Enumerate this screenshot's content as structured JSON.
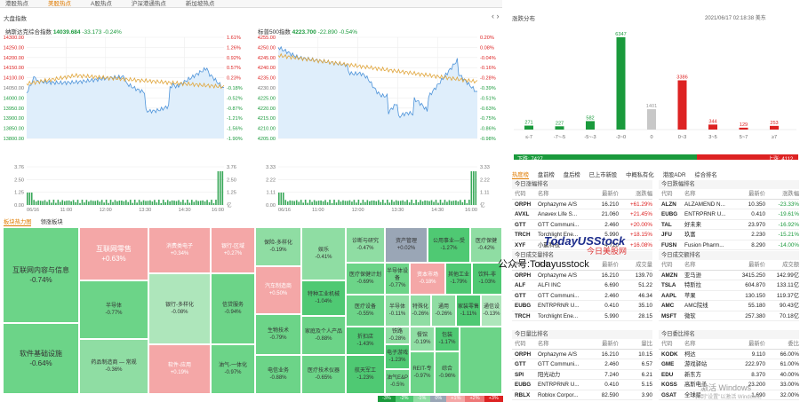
{
  "top_tabs": [
    "港股热点",
    "美股热点",
    "A股热点",
    "沪深港通热点",
    "新加坡热点"
  ],
  "market_index": {
    "title": "大盘指数",
    "nasdaq": {
      "label": "纳斯达克综合指数",
      "value": "14039.684",
      "change": "-33.173",
      "pct": "-0.24%",
      "yticks": [
        "14300.00",
        "14250.00",
        "14200.00",
        "14150.00",
        "14100.00",
        "14050.00",
        "14000.00",
        "13950.00",
        "13900.00",
        "13850.00",
        "13800.00"
      ],
      "pticks": [
        "1.61%",
        "1.26%",
        "0.92%",
        "0.57%",
        "0.23%",
        "-0.18%",
        "-0.52%",
        "-0.87%",
        "-1.21%",
        "-1.56%",
        "-1.90%"
      ],
      "vticks": [
        "3.76",
        "2.50",
        "1.25",
        "0.00"
      ],
      "vticks_r": [
        "3.76",
        "2.50",
        "1.25",
        "亿"
      ],
      "xticks": [
        "06/16",
        "11:00",
        "12:00",
        "13:30",
        "14:30",
        "16:00"
      ]
    },
    "sp500": {
      "label": "标普500指数",
      "value": "4223.700",
      "change": "-22.890",
      "pct": "-0.54%",
      "yticks": [
        "4255.00",
        "4250.00",
        "4245.00",
        "4240.00",
        "4235.00",
        "4230.00",
        "4225.00",
        "4220.00",
        "4215.00",
        "4210.00",
        "4205.00"
      ],
      "pticks": [
        "0.20%",
        "0.08%",
        "-0.04%",
        "-0.16%",
        "-0.28%",
        "-0.39%",
        "-0.51%",
        "-0.63%",
        "-0.75%",
        "-0.86%",
        "-0.98%"
      ],
      "vticks": [
        "3.33",
        "2.22",
        "1.11",
        "0.00"
      ],
      "vticks_r": [
        "3.33",
        "2.22",
        "1.11",
        "亿"
      ],
      "xticks": [
        "06/16",
        "11:00",
        "12:00",
        "13:30",
        "14:30",
        "16:00"
      ]
    }
  },
  "distribution": {
    "title": "涨跌分布",
    "timestamp": "2021/06/17 02:18:38 美东",
    "down_label": "下跌: 7427",
    "up_label": "上涨: 4112",
    "bars": [
      {
        "label": "≤-7",
        "value": 271,
        "color": "#1a9a3c"
      },
      {
        "label": "-7~-5",
        "value": 227,
        "color": "#1a9a3c"
      },
      {
        "label": "-5~-3",
        "value": 582,
        "color": "#1a9a3c"
      },
      {
        "label": "-3~0",
        "value": 6347,
        "color": "#1a9a3c"
      },
      {
        "label": "0",
        "value": 1401,
        "color": "#c8c8c8"
      },
      {
        "label": "0~3",
        "value": 3386,
        "color": "#d22"
      },
      {
        "label": "3~5",
        "value": 344,
        "color": "#d22"
      },
      {
        "label": "5~7",
        "value": 129,
        "color": "#d22"
      },
      {
        "label": "≥7",
        "value": 253,
        "color": "#d22"
      }
    ]
  },
  "heatmap": {
    "tabs": [
      "板块热力图",
      "领涨板块"
    ]
  },
  "right_tabs": [
    "热度榜",
    "盘前榜",
    "盘后榜",
    "已上市新股",
    "中概私有化",
    "港股ADR",
    "综合排名"
  ],
  "watermark": {
    "brand": "TodayUSStock",
    "cn": "今日美股网",
    "wechat": "公众号:Todayusstock",
    "win1": "激活 Windows",
    "win2": "转到\"设置\"以激活 Windows。"
  },
  "tables": {
    "gain": {
      "title": "今日涨幅排名",
      "headers": [
        "代码",
        "名称",
        "最新价",
        "涨跌幅"
      ],
      "rows": [
        [
          "ORPH",
          "Orphazyme A/S",
          "16.210",
          "+61.29%"
        ],
        [
          "AVXL",
          "Anavex Life S...",
          "21.060",
          "+21.45%"
        ],
        [
          "GTT",
          "GTT Communi...",
          "2.460",
          "+20.00%"
        ],
        [
          "TRCH",
          "Torchlight Ene...",
          "5.990",
          "+18.15%"
        ],
        [
          "XYF",
          "小赢科技",
          "4.720",
          "+16.08%"
        ]
      ]
    },
    "loss": {
      "title": "今日跌幅排名",
      "headers": [
        "代码",
        "名称",
        "最新价",
        "涨跌幅"
      ],
      "rows": [
        [
          "ALZN",
          "ALZAMEND N...",
          "10.350",
          "-23.33%"
        ],
        [
          "EUBG",
          "ENTRPRNR U...",
          "0.410",
          "-19.61%"
        ],
        [
          "TAL",
          "好未来",
          "23.970",
          "-16.92%"
        ],
        [
          "JFU",
          "玖富",
          "2.230",
          "-15.21%"
        ],
        [
          "FUSN",
          "Fusion Pharm...",
          "8.290",
          "-14.00%"
        ]
      ]
    },
    "vol": {
      "title": "今日成交量排名",
      "headers": [
        "代码",
        "名称",
        "最新价",
        "成交量"
      ],
      "rows": [
        [
          "ORPH",
          "Orphazyme A/S",
          "16.210",
          "139.70"
        ],
        [
          "ALF",
          "ALFI INC",
          "6.690",
          "51.22"
        ],
        [
          "GTT",
          "GTT Communi...",
          "2.460",
          "46.34"
        ],
        [
          "EUBG",
          "ENTRPRNR U...",
          "0.410",
          "35.10"
        ],
        [
          "TRCH",
          "Torchlight Ene...",
          "5.990",
          "28.15"
        ]
      ]
    },
    "amt": {
      "title": "今日成交额排名",
      "headers": [
        "代码",
        "名称",
        "最新价",
        "成交额"
      ],
      "rows": [
        [
          "AMZN",
          "亚马逊",
          "3415.250",
          "142.99亿"
        ],
        [
          "TSLA",
          "特斯拉",
          "604.870",
          "133.11亿"
        ],
        [
          "AAPL",
          "苹果",
          "130.150",
          "119.37亿"
        ],
        [
          "AMC",
          "AMC院线",
          "55.180",
          "90.43亿"
        ],
        [
          "MSFT",
          "微软",
          "257.380",
          "70.18亿"
        ]
      ]
    },
    "qty": {
      "title": "今日量比排名",
      "headers": [
        "代码",
        "名称",
        "最新价",
        "量比"
      ],
      "rows": [
        [
          "ORPH",
          "Orphazyme A/S",
          "16.210",
          "10.15"
        ],
        [
          "GTT",
          "GTT Communi...",
          "2.460",
          "6.57"
        ],
        [
          "SPI",
          "阳光动力",
          "7.240",
          "6.21"
        ],
        [
          "EUBG",
          "ENTRPRNR U...",
          "0.410",
          "5.15"
        ],
        [
          "RBLX",
          "Roblox Corpor...",
          "82.590",
          "3.90"
        ]
      ]
    },
    "turn": {
      "title": "今日委比排名",
      "headers": [
        "代码",
        "名称",
        "最新价",
        "委比"
      ],
      "rows": [
        [
          "KODK",
          "柯达",
          "9.110",
          "66.00%"
        ],
        [
          "GME",
          "游戏驿站",
          "222.970",
          "61.00%"
        ],
        [
          "EDU",
          "新东方",
          "8.370",
          "40.00%"
        ],
        [
          "KOSS",
          "高斯电子",
          "23.200",
          "33.00%"
        ],
        [
          "GSAT",
          "全球星",
          "1.690",
          "32.00%"
        ]
      ]
    }
  },
  "tiles": [
    {
      "n": "互联网内容与信息",
      "v": "-0.74%",
      "c": "#6cd488",
      "x": 3,
      "y": 256,
      "w": 86,
      "h": 108,
      "big": 1
    },
    {
      "n": "软件基础设施",
      "v": "-0.64%",
      "c": "#6cd488",
      "x": 3,
      "y": 364,
      "w": 86,
      "h": 80,
      "big": 1
    },
    {
      "n": "互联网零售",
      "v": "+0.63%",
      "c": "#f4a7a7",
      "x": 89,
      "y": 256,
      "w": 78,
      "h": 60,
      "big": 1
    },
    {
      "n": "半导体",
      "v": "-0.77%",
      "c": "#6cd488",
      "x": 89,
      "y": 316,
      "w": 78,
      "h": 66
    },
    {
      "n": "药品制造商 — 常规",
      "v": "-0.36%",
      "c": "#8fdda3",
      "x": 89,
      "y": 382,
      "w": 78,
      "h": 62
    },
    {
      "n": "消费类电子",
      "v": "+0.34%",
      "c": "#f4a7a7",
      "x": 167,
      "y": 256,
      "w": 70,
      "h": 52
    },
    {
      "n": "银行-多样化",
      "v": "-0.08%",
      "c": "#aee6bb",
      "x": 167,
      "y": 308,
      "w": 70,
      "h": 80
    },
    {
      "n": "软件-应用",
      "v": "+0.19%",
      "c": "#f4a7a7",
      "x": 167,
      "y": 388,
      "w": 70,
      "h": 56
    },
    {
      "n": "银行-区域",
      "v": "+0.27%",
      "c": "#f4a7a7",
      "x": 237,
      "y": 256,
      "w": 50,
      "h": 52
    },
    {
      "n": "信贷服务",
      "v": "-0.94%",
      "c": "#6cd488",
      "x": 237,
      "y": 308,
      "w": 50,
      "h": 80
    },
    {
      "n": "油气-一体化",
      "v": "-0.97%",
      "c": "#6cd488",
      "x": 237,
      "y": 388,
      "w": 50,
      "h": 56
    },
    {
      "n": "保险-多样化",
      "v": "-0.19%",
      "c": "#8fdda3",
      "x": 287,
      "y": 256,
      "w": 52,
      "h": 44
    },
    {
      "n": "汽车制造商",
      "v": "+0.50%",
      "c": "#f4a7a7",
      "x": 287,
      "y": 300,
      "w": 52,
      "h": 54
    },
    {
      "n": "生物技术",
      "v": "-0.79%",
      "c": "#6cd488",
      "x": 287,
      "y": 354,
      "w": 52,
      "h": 46
    },
    {
      "n": "电信业务",
      "v": "-0.88%",
      "c": "#6cd488",
      "x": 287,
      "y": 400,
      "w": 52,
      "h": 44
    },
    {
      "n": "娱乐",
      "v": "-0.41%",
      "c": "#8fdda3",
      "x": 339,
      "y": 256,
      "w": 50,
      "h": 60
    },
    {
      "n": "特种工业机械",
      "v": "-1.04%",
      "c": "#4fc973",
      "x": 339,
      "y": 316,
      "w": 50,
      "h": 40
    },
    {
      "n": "家庭及个人产品",
      "v": "-0.88%",
      "c": "#6cd488",
      "x": 339,
      "y": 356,
      "w": 50,
      "h": 44
    },
    {
      "n": "医疗技术仪器",
      "v": "-0.65%",
      "c": "#6cd488",
      "x": 339,
      "y": 400,
      "w": 50,
      "h": 44
    },
    {
      "n": "诊断与研究",
      "v": "-0.47%",
      "c": "#8fdda3",
      "x": 389,
      "y": 256,
      "w": 44,
      "h": 40
    },
    {
      "n": "医疗保健计划",
      "v": "-0.69%",
      "c": "#6cd488",
      "x": 389,
      "y": 296,
      "w": 44,
      "h": 36
    },
    {
      "n": "医疗设备",
      "v": "-0.55%",
      "c": "#6cd488",
      "x": 389,
      "y": 332,
      "w": 44,
      "h": 36
    },
    {
      "n": "折扣店",
      "v": "-1.43%",
      "c": "#4fc973",
      "x": 389,
      "y": 368,
      "w": 44,
      "h": 32
    },
    {
      "n": "航天军工",
      "v": "-1.23%",
      "c": "#4fc973",
      "x": 389,
      "y": 400,
      "w": 44,
      "h": 44
    },
    {
      "n": "资产管理",
      "v": "+0.02%",
      "c": "#9aa6b6",
      "x": 433,
      "y": 256,
      "w": 48,
      "h": 40
    },
    {
      "n": "半导体设备",
      "v": "-0.77%",
      "c": "#6cd488",
      "x": 433,
      "y": 296,
      "w": 28,
      "h": 36
    },
    {
      "n": "资本市场",
      "v": "-0.18%",
      "c": "#f4a7a7",
      "x": 461,
      "y": 296,
      "w": 40,
      "h": 36
    },
    {
      "n": "公用事业—受",
      "v": "-1.27%",
      "c": "#4fc973",
      "x": 481,
      "y": 256,
      "w": 48,
      "h": 40
    },
    {
      "n": "其他工业",
      "v": "-1.79%",
      "c": "#4fc973",
      "x": 501,
      "y": 296,
      "w": 30,
      "h": 36
    },
    {
      "n": "医疗保健",
      "v": "-0.42%",
      "c": "#8fdda3",
      "x": 529,
      "y": 256,
      "w": 36,
      "h": 40
    },
    {
      "n": "饮料-非",
      "v": "-1.03%",
      "c": "#4fc973",
      "x": 531,
      "y": 296,
      "w": 34,
      "h": 36
    },
    {
      "n": "半导体",
      "v": "-0.11%",
      "c": "#8fdda3",
      "x": 433,
      "y": 332,
      "w": 28,
      "h": 36
    },
    {
      "n": "特殊化",
      "v": "-0.26%",
      "c": "#8fdda3",
      "x": 461,
      "y": 332,
      "w": 24,
      "h": 36
    },
    {
      "n": "通用",
      "v": "-0.26%",
      "c": "#8fdda3",
      "x": 485,
      "y": 332,
      "w": 28,
      "h": 36
    },
    {
      "n": "家装零售",
      "v": "-1.11%",
      "c": "#4fc973",
      "x": 513,
      "y": 332,
      "w": 28,
      "h": 36
    },
    {
      "n": "通信设",
      "v": "-0.13%",
      "c": "#aee6bb",
      "x": 541,
      "y": 332,
      "w": 24,
      "h": 36
    },
    {
      "n": "铁路",
      "v": "-0.28%",
      "c": "#8fdda3",
      "x": 433,
      "y": 368,
      "w": 28,
      "h": 20
    },
    {
      "n": "电子游戏",
      "v": "-1.23%",
      "c": "#4fc973",
      "x": 433,
      "y": 388,
      "w": 28,
      "h": 28
    },
    {
      "n": "油气E&P",
      "v": "-0.5%",
      "c": "#6cd488",
      "x": 433,
      "y": 416,
      "w": 28,
      "h": 28
    },
    {
      "n": "餐馆",
      "v": "-0.19%",
      "c": "#8fdda3",
      "x": 461,
      "y": 368,
      "w": 28,
      "h": 28
    },
    {
      "n": "包装",
      "v": "-1.17%",
      "c": "#4fc973",
      "x": 489,
      "y": 368,
      "w": 28,
      "h": 28
    },
    {
      "n": "REIT-专",
      "v": "-0.97%",
      "c": "#6cd488",
      "x": 461,
      "y": 396,
      "w": 28,
      "h": 48
    },
    {
      "n": "综合",
      "v": "-0.96%",
      "c": "#6cd488",
      "x": 489,
      "y": 396,
      "w": 28,
      "h": 48
    },
    {
      "n": "",
      "v": "",
      "c": "#6cd488",
      "x": 517,
      "y": 368,
      "w": 48,
      "h": 76
    }
  ],
  "legend": [
    "-3%",
    "-2%",
    "-1%",
    "0%",
    "+1%",
    "+2%",
    "+3%"
  ]
}
